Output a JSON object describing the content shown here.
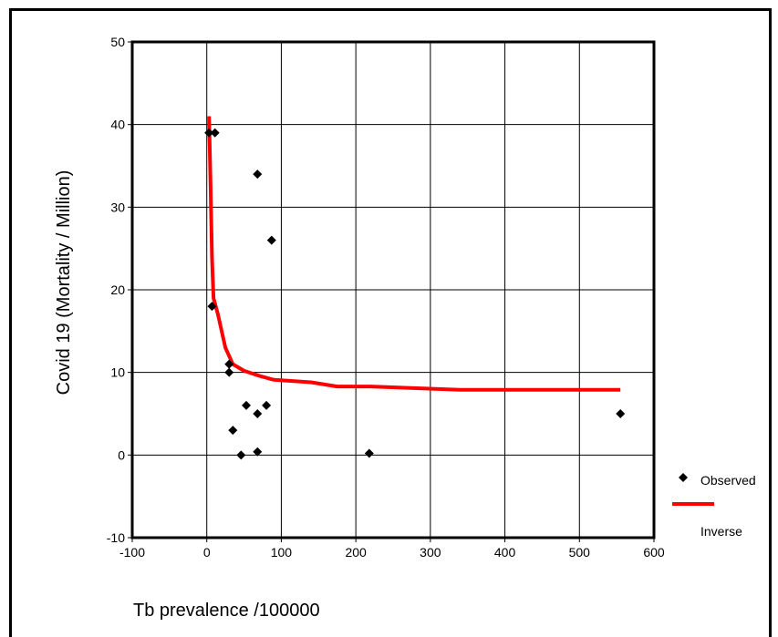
{
  "chart_data": {
    "type": "scatter",
    "title": "",
    "xlabel": "Tb prevalence /100000",
    "ylabel": "Covid 19 (Mortality / Million)",
    "xlim": [
      -100,
      600
    ],
    "ylim": [
      -10,
      50
    ],
    "xticks": [
      -100,
      0,
      100,
      200,
      300,
      400,
      500,
      600
    ],
    "yticks": [
      -10,
      0,
      10,
      20,
      30,
      40,
      50
    ],
    "grid": true,
    "legend_position": "right",
    "series": [
      {
        "name": "Observed",
        "kind": "scatter",
        "marker": "diamond",
        "color": "#000000",
        "points": [
          {
            "x": 3,
            "y": 39
          },
          {
            "x": 11,
            "y": 39
          },
          {
            "x": 7,
            "y": 18
          },
          {
            "x": 68,
            "y": 34
          },
          {
            "x": 87,
            "y": 26
          },
          {
            "x": 30,
            "y": 11
          },
          {
            "x": 30,
            "y": 10
          },
          {
            "x": 53,
            "y": 6
          },
          {
            "x": 80,
            "y": 6
          },
          {
            "x": 68,
            "y": 5
          },
          {
            "x": 35,
            "y": 3
          },
          {
            "x": 46,
            "y": 0
          },
          {
            "x": 68,
            "y": 0.4
          },
          {
            "x": 218,
            "y": 0.2
          },
          {
            "x": 555,
            "y": 5
          }
        ]
      },
      {
        "name": "Inverse",
        "kind": "line",
        "color": "#ff0000",
        "points": [
          {
            "x": 3,
            "y": 41
          },
          {
            "x": 5,
            "y": 33
          },
          {
            "x": 7,
            "y": 24
          },
          {
            "x": 9,
            "y": 19
          },
          {
            "x": 15,
            "y": 17
          },
          {
            "x": 25,
            "y": 13
          },
          {
            "x": 35,
            "y": 11
          },
          {
            "x": 50,
            "y": 10.2
          },
          {
            "x": 70,
            "y": 9.6
          },
          {
            "x": 90,
            "y": 9.1
          },
          {
            "x": 140,
            "y": 8.8
          },
          {
            "x": 175,
            "y": 8.3
          },
          {
            "x": 220,
            "y": 8.3
          },
          {
            "x": 340,
            "y": 7.9
          },
          {
            "x": 555,
            "y": 7.9
          }
        ]
      }
    ]
  }
}
